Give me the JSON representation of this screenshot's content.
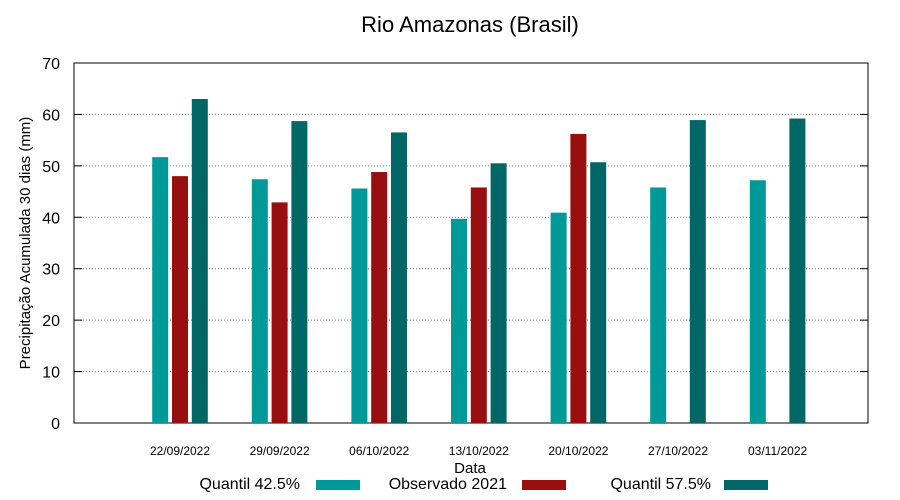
{
  "chart_data": {
    "type": "bar",
    "title": "Rio Amazonas (Brasil)",
    "xlabel": "Data",
    "ylabel": "Precipitação Acumulada 30 dias (mm)",
    "ylim": [
      0,
      70
    ],
    "yticks": [
      0,
      10,
      20,
      30,
      40,
      50,
      60,
      70
    ],
    "grid": true,
    "legend_position": "bottom",
    "categories": [
      "22/09/2022",
      "29/09/2022",
      "06/10/2022",
      "13/10/2022",
      "20/10/2022",
      "27/10/2022",
      "03/11/2022"
    ],
    "series": [
      {
        "name": "Quantil 42.5%",
        "color": "#009999",
        "values": [
          51.7,
          47.4,
          45.6,
          39.7,
          40.9,
          45.8,
          47.2
        ]
      },
      {
        "name": "Observado 2021",
        "color": "#990f0f",
        "values": [
          48.0,
          42.9,
          48.8,
          45.8,
          56.2,
          null,
          null
        ]
      },
      {
        "name": "Quantil 57.5%",
        "color": "#006666",
        "values": [
          63.0,
          58.7,
          56.5,
          50.5,
          50.7,
          58.9,
          59.2
        ]
      }
    ]
  }
}
